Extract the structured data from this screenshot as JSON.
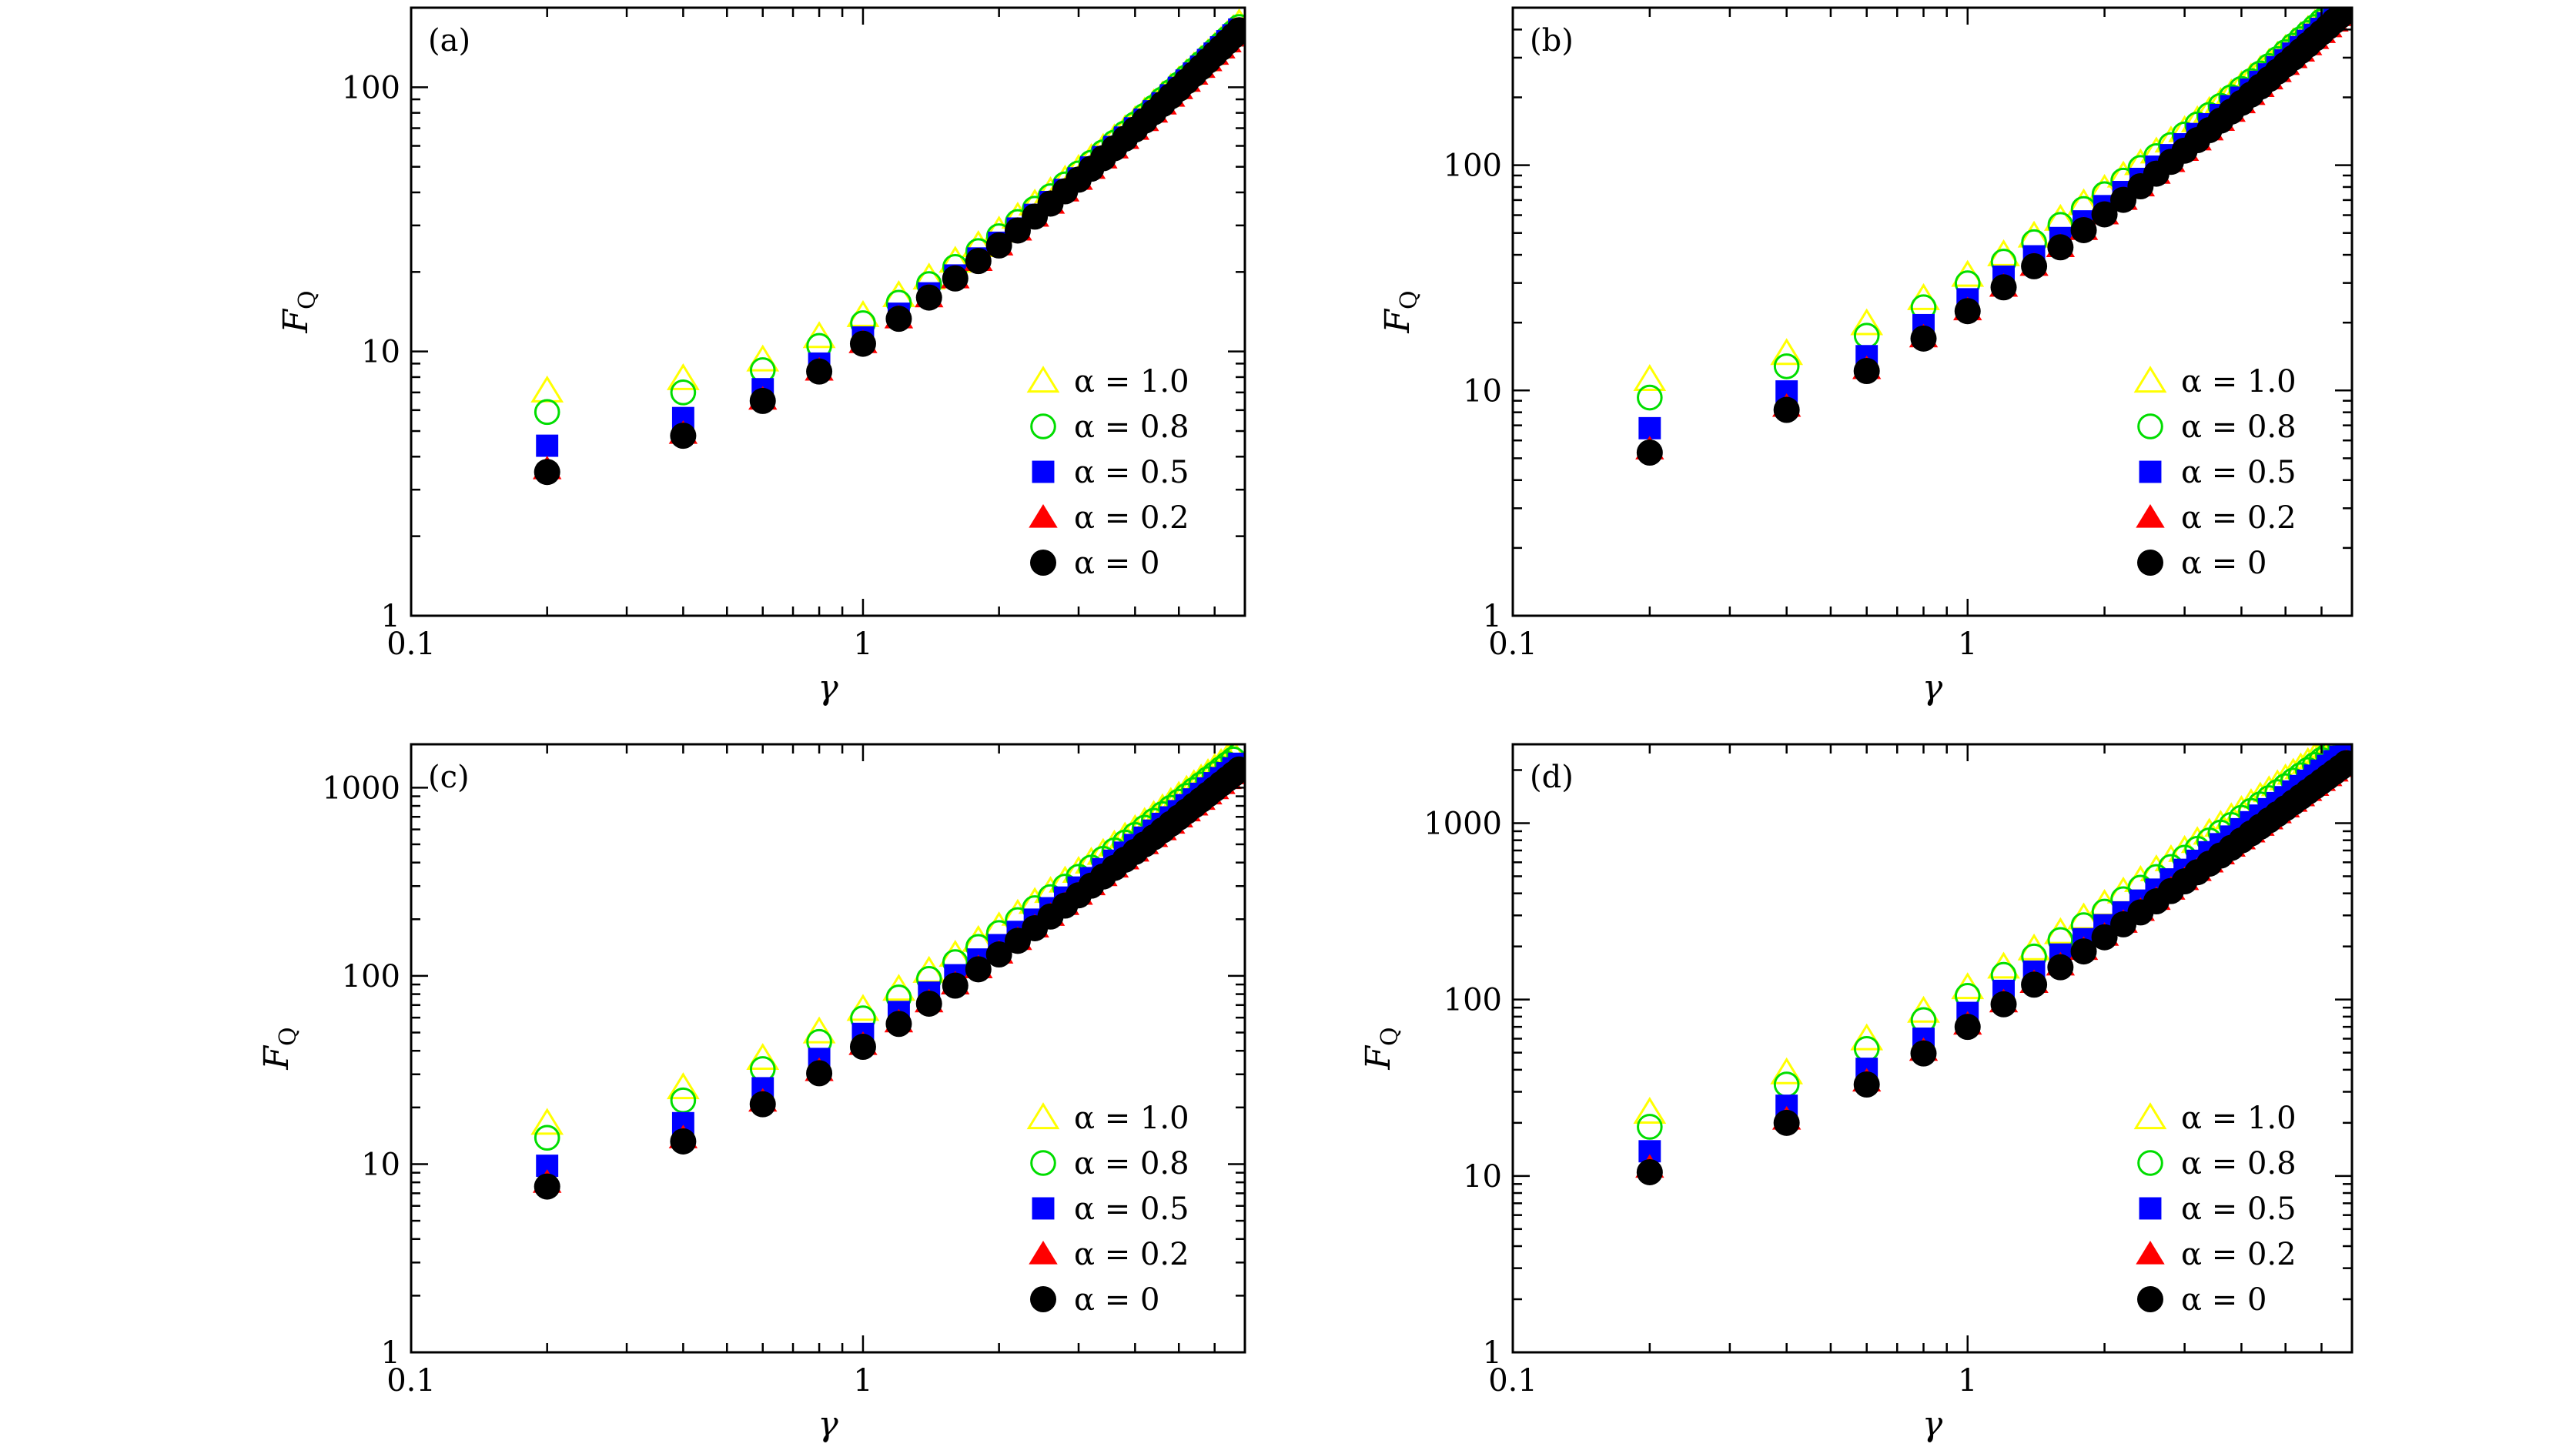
{
  "series_style": {
    "1.0": {
      "marker": "triangle-open",
      "color": "#ffff00"
    },
    "0.8": {
      "marker": "circle-open",
      "color": "#00dd00"
    },
    "0.5": {
      "marker": "square-filled",
      "color": "#0000ff"
    },
    "0.2": {
      "marker": "triangle-filled",
      "color": "#ff0000"
    },
    "0": {
      "marker": "circle-filled",
      "color": "#000000"
    }
  },
  "chart_data": [
    {
      "panel": "(a)",
      "type": "scatter",
      "xscale": "log",
      "yscale": "log",
      "xlabel": "γ",
      "ylabel": "F",
      "ylabel_sub": "Q",
      "xlim": [
        0.1,
        7
      ],
      "ylim": [
        1,
        200
      ],
      "xticks": [
        0.1,
        1
      ],
      "xtick_labels": [
        "0.1",
        "1"
      ],
      "yticks": [
        1,
        10,
        100
      ],
      "ytick_labels": [
        "1",
        "10",
        "100"
      ],
      "legend_position": "lower-right",
      "x": [
        0.2,
        0.4,
        0.6,
        0.8,
        1.0,
        1.2,
        1.4,
        1.6,
        1.8,
        2.0,
        2.2,
        2.4,
        2.6,
        2.8,
        3.0,
        3.2,
        3.4,
        3.6,
        3.8,
        4.0,
        4.2,
        4.4,
        4.6,
        4.8,
        5.0,
        5.2,
        5.4,
        5.6,
        5.8,
        6.0,
        6.2,
        6.4,
        6.6,
        6.8
      ],
      "series": [
        {
          "name": "α = 1.0",
          "key": "1.0",
          "values": [
            7.1,
            7.9,
            9.3,
            11.4,
            13.7,
            16.3,
            19.0,
            22.0,
            25.2,
            28.6,
            32.3,
            36.2,
            40.3,
            44.6,
            49.0,
            53.8,
            58.8,
            63.9,
            69.2,
            74.9,
            80.7,
            86.7,
            92.9,
            99.3,
            105.9,
            112.7,
            119.7,
            126.9,
            134.3,
            141.9,
            149.7,
            157.6,
            165.8,
            174.2
          ]
        },
        {
          "name": "α = 0.8",
          "key": "0.8",
          "values": [
            5.9,
            7.0,
            8.5,
            10.5,
            12.8,
            15.3,
            18.0,
            20.9,
            24.0,
            27.3,
            30.9,
            34.7,
            38.7,
            42.9,
            47.2,
            51.8,
            56.7,
            61.7,
            66.9,
            72.4,
            78.0,
            83.8,
            89.9,
            96.1,
            102.5,
            109.1,
            115.9,
            122.9,
            130.1,
            137.5,
            145.1,
            152.9,
            160.9,
            169.1
          ]
        },
        {
          "name": "α = 0.5",
          "key": "0.5",
          "values": [
            4.4,
            5.6,
            7.2,
            9.0,
            11.3,
            13.9,
            16.6,
            19.4,
            22.5,
            25.8,
            29.2,
            32.9,
            36.8,
            40.9,
            45.2,
            49.7,
            54.4,
            59.4,
            64.5,
            69.9,
            75.4,
            81.1,
            87.0,
            93.2,
            99.5,
            106.0,
            112.7,
            119.6,
            126.8,
            134.1,
            141.6,
            149.3,
            157.2,
            165.3
          ]
        },
        {
          "name": "α = 0.2",
          "key": "0.2",
          "values": [
            3.6,
            4.9,
            6.6,
            8.5,
            10.8,
            13.4,
            16.1,
            19.0,
            22.1,
            25.3,
            28.8,
            32.5,
            36.4,
            40.5,
            44.8,
            49.3,
            54.0,
            58.9,
            64.0,
            69.3,
            74.8,
            80.5,
            86.4,
            92.5,
            98.8,
            105.3,
            112.0,
            118.9,
            126.0,
            133.3,
            140.8,
            148.5,
            156.4,
            164.5
          ]
        },
        {
          "name": "α = 0",
          "key": "0",
          "values": [
            3.5,
            4.8,
            6.5,
            8.4,
            10.7,
            13.3,
            16.0,
            18.9,
            22.0,
            25.2,
            28.7,
            32.4,
            36.3,
            40.4,
            44.7,
            49.2,
            53.9,
            58.8,
            63.9,
            69.2,
            74.7,
            80.4,
            86.3,
            92.4,
            98.7,
            105.2,
            111.9,
            118.8,
            125.9,
            133.2,
            140.7,
            148.4,
            156.3,
            164.4
          ]
        }
      ]
    },
    {
      "panel": "(b)",
      "type": "scatter",
      "xscale": "log",
      "yscale": "log",
      "xlabel": "γ",
      "ylabel": "F",
      "ylabel_sub": "Q",
      "xlim": [
        0.1,
        7
      ],
      "ylim": [
        1,
        500
      ],
      "xticks": [
        0.1,
        1
      ],
      "xtick_labels": [
        "0.1",
        "1"
      ],
      "yticks": [
        1,
        10,
        100
      ],
      "ytick_labels": [
        "1",
        "10",
        "100"
      ],
      "legend_position": "lower-right",
      "x": [
        0.2,
        0.4,
        0.6,
        0.8,
        1.0,
        1.2,
        1.4,
        1.6,
        1.8,
        2.0,
        2.2,
        2.4,
        2.6,
        2.8,
        3.0,
        3.2,
        3.4,
        3.6,
        3.8,
        4.0,
        4.2,
        4.4,
        4.6,
        4.8,
        5.0,
        5.2,
        5.4,
        5.6,
        5.8,
        6.0,
        6.2,
        6.4,
        6.6,
        6.8
      ],
      "series": [
        {
          "name": "α = 1.0",
          "key": "1.0",
          "values": [
            11.2,
            14.6,
            19.8,
            25.6,
            32.5,
            40.1,
            48.5,
            57.6,
            67.5,
            78.2,
            89.6,
            101.7,
            114.6,
            128.2,
            142.6,
            157.7,
            173.6,
            190.2,
            207.5,
            225.6,
            244.5,
            264.1,
            284.4,
            305.5,
            327.4,
            350.0,
            373.4,
            397.5,
            422.4,
            448.0,
            474.4,
            501.5,
            529.4,
            558.0
          ]
        },
        {
          "name": "α = 0.8",
          "key": "0.8",
          "values": [
            9.3,
            12.8,
            17.5,
            23.4,
            29.9,
            37.3,
            45.5,
            54.3,
            63.9,
            74.3,
            85.4,
            97.2,
            109.7,
            122.9,
            136.9,
            151.6,
            167.1,
            183.3,
            200.2,
            217.9,
            236.3,
            255.4,
            275.3,
            295.9,
            317.3,
            339.4,
            362.2,
            385.8,
            410.1,
            435.2,
            461.0,
            487.5,
            514.8,
            542.8
          ]
        },
        {
          "name": "α = 0.5",
          "key": "0.5",
          "values": [
            6.8,
            9.9,
            14.2,
            19.5,
            25.4,
            32.0,
            39.4,
            47.5,
            56.3,
            65.8,
            76.0,
            86.9,
            98.5,
            110.8,
            123.8,
            137.5,
            151.9,
            167.0,
            182.8,
            199.3,
            216.5,
            234.4,
            253.0,
            272.3,
            292.3,
            313.0,
            334.4,
            356.5,
            379.3,
            402.8,
            427.0,
            451.9,
            477.5,
            503.8
          ]
        },
        {
          "name": "α = 0.2",
          "key": "0.2",
          "values": [
            5.5,
            8.5,
            12.5,
            17.3,
            22.8,
            29.0,
            35.9,
            43.5,
            51.8,
            60.8,
            70.5,
            80.9,
            92.0,
            103.8,
            116.3,
            129.5,
            143.4,
            158.0,
            173.3,
            189.3,
            206.0,
            223.4,
            241.5,
            260.3,
            279.8,
            300.0,
            320.9,
            342.5,
            364.8,
            387.8,
            411.5,
            435.9,
            461.0,
            486.8
          ]
        },
        {
          "name": "α = 0",
          "key": "0",
          "values": [
            5.3,
            8.2,
            12.2,
            17.0,
            22.5,
            28.7,
            35.6,
            43.2,
            51.5,
            60.5,
            70.2,
            80.6,
            91.7,
            103.5,
            116.0,
            129.2,
            143.1,
            157.7,
            173.0,
            189.0,
            205.7,
            223.1,
            241.2,
            260.0,
            279.5,
            299.7,
            320.6,
            342.2,
            364.5,
            387.5,
            411.2,
            435.6,
            460.7,
            486.5
          ]
        }
      ]
    },
    {
      "panel": "(c)",
      "type": "scatter",
      "xscale": "log",
      "yscale": "log",
      "xlabel": "γ",
      "ylabel": "F",
      "ylabel_sub": "Q",
      "xlim": [
        0.1,
        7
      ],
      "ylim": [
        1,
        1700
      ],
      "xticks": [
        0.1,
        1
      ],
      "xtick_labels": [
        "0.1",
        "1"
      ],
      "yticks": [
        1,
        10,
        100,
        1000
      ],
      "ytick_labels": [
        "1",
        "10",
        "100",
        "1000"
      ],
      "legend_position": "lower-right",
      "x": [
        0.2,
        0.4,
        0.6,
        0.8,
        1.0,
        1.2,
        1.4,
        1.6,
        1.8,
        2.0,
        2.2,
        2.4,
        2.6,
        2.8,
        3.0,
        3.2,
        3.4,
        3.6,
        3.8,
        4.0,
        4.2,
        4.4,
        4.6,
        4.8,
        5.0,
        5.2,
        5.4,
        5.6,
        5.8,
        6.0,
        6.2,
        6.4,
        6.6,
        6.8
      ],
      "series": [
        {
          "name": "α = 1.0",
          "key": "1.0",
          "values": [
            16.5,
            25.5,
            36.5,
            50.5,
            66.5,
            85.0,
            106.0,
            129.0,
            154.5,
            182.5,
            213.0,
            246.0,
            281.5,
            319.5,
            360.0,
            403.0,
            448.5,
            496.5,
            547.0,
            600.0,
            655.5,
            713.5,
            774.0,
            837.0,
            902.5,
            970.5,
            1041.0,
            1114.0,
            1189.5,
            1267.5,
            1348.0,
            1431.0,
            1516.5,
            1604.5
          ]
        },
        {
          "name": "α = 0.8",
          "key": "0.8",
          "values": [
            13.8,
            21.8,
            32.0,
            44.6,
            59.5,
            76.8,
            96.4,
            118.3,
            142.5,
            169.0,
            197.8,
            228.9,
            262.3,
            298.0,
            336.0,
            376.3,
            418.9,
            463.8,
            511.0,
            560.5,
            612.3,
            666.4,
            722.8,
            781.5,
            842.5,
            905.8,
            971.4,
            1039.3,
            1109.5,
            1182.0,
            1256.8,
            1333.9,
            1413.3,
            1495.0
          ]
        },
        {
          "name": "α = 0.5",
          "key": "0.5",
          "values": [
            9.8,
            16.5,
            25.3,
            36.2,
            49.2,
            64.3,
            81.5,
            100.8,
            122.2,
            145.7,
            171.3,
            199.0,
            228.8,
            260.7,
            294.7,
            330.8,
            369.0,
            409.3,
            451.7,
            496.2,
            542.8,
            591.5,
            642.3,
            695.2,
            750.2,
            807.3,
            866.5,
            927.8,
            991.2,
            1056.7,
            1124.3,
            1194.0,
            1265.8,
            1339.7
          ]
        },
        {
          "name": "α = 0.2",
          "key": "0.2",
          "values": [
            8.0,
            13.8,
            21.6,
            31.4,
            43.2,
            57.0,
            72.8,
            90.6,
            110.4,
            132.2,
            156.0,
            181.8,
            209.6,
            239.4,
            271.2,
            305.0,
            340.8,
            378.6,
            418.4,
            460.2,
            504.0,
            549.8,
            597.6,
            647.4,
            699.2,
            753.0,
            808.8,
            866.6,
            926.4,
            988.2,
            1052.0,
            1117.8,
            1185.6,
            1255.4
          ]
        },
        {
          "name": "α = 0",
          "key": "0",
          "values": [
            7.6,
            13.2,
            20.8,
            30.4,
            42.0,
            55.6,
            71.2,
            88.8,
            108.4,
            130.0,
            153.6,
            179.2,
            206.8,
            236.4,
            268.0,
            301.6,
            337.2,
            374.8,
            414.4,
            456.0,
            499.6,
            545.2,
            592.8,
            642.4,
            694.0,
            747.6,
            803.2,
            860.8,
            920.4,
            982.0,
            1045.6,
            1111.2,
            1178.8,
            1248.4
          ]
        }
      ]
    },
    {
      "panel": "(d)",
      "type": "scatter",
      "xscale": "log",
      "yscale": "log",
      "xlabel": "γ",
      "ylabel": "F",
      "ylabel_sub": "Q",
      "xlim": [
        0.1,
        7
      ],
      "ylim": [
        1,
        2800
      ],
      "xticks": [
        0.1,
        1
      ],
      "xtick_labels": [
        "0.1",
        "1"
      ],
      "yticks": [
        1,
        10,
        100,
        1000
      ],
      "ytick_labels": [
        "1",
        "10",
        "100",
        "1000"
      ],
      "legend_position": "lower-right",
      "x": [
        0.2,
        0.4,
        0.6,
        0.8,
        1.0,
        1.2,
        1.4,
        1.6,
        1.8,
        2.0,
        2.2,
        2.4,
        2.6,
        2.8,
        3.0,
        3.2,
        3.4,
        3.6,
        3.8,
        4.0,
        4.2,
        4.4,
        4.6,
        4.8,
        5.0,
        5.2,
        5.4,
        5.6,
        5.8,
        6.0,
        6.2,
        6.4,
        6.6,
        6.8
      ],
      "series": [
        {
          "name": "α = 1.0",
          "key": "1.0",
          "values": [
            23.0,
            38.5,
            60.0,
            86.0,
            117.0,
            153.0,
            194.0,
            240.0,
            291.0,
            347.0,
            408.0,
            474.0,
            545.0,
            621.0,
            702.0,
            788.0,
            879.0,
            975.0,
            1076.0,
            1182.0,
            1293.0,
            1409.0,
            1530.0,
            1656.0,
            1787.0,
            1923.0,
            2064.0,
            2210.0,
            2361.0,
            2517.0,
            2678.0,
            2844.0,
            3015.0,
            3191.0
          ]
        },
        {
          "name": "α = 0.8",
          "key": "0.8",
          "values": [
            19.0,
            33.0,
            52.5,
            76.5,
            105.0,
            138.0,
            175.5,
            217.5,
            264.0,
            315.0,
            370.5,
            430.5,
            495.0,
            564.0,
            637.5,
            715.5,
            798.0,
            885.0,
            976.5,
            1072.5,
            1173.0,
            1278.0,
            1387.5,
            1501.5,
            1620.0,
            1743.0,
            1870.5,
            2002.5,
            2139.0,
            2280.0,
            2425.5,
            2575.5,
            2730.0,
            2889.0
          ]
        },
        {
          "name": "α = 0.5",
          "key": "0.5",
          "values": [
            13.8,
            25.0,
            40.5,
            60.0,
            84.0,
            112.0,
            144.0,
            180.0,
            220.0,
            264.0,
            312.0,
            364.0,
            420.0,
            480.0,
            544.0,
            612.0,
            684.0,
            760.0,
            840.0,
            924.0,
            1012.0,
            1104.0,
            1200.0,
            1300.0,
            1404.0,
            1512.0,
            1624.0,
            1740.0,
            1860.0,
            1984.0,
            2112.0,
            2244.0,
            2380.0,
            2520.0
          ]
        },
        {
          "name": "α = 0.2",
          "key": "0.2",
          "values": [
            11.2,
            21.0,
            34.5,
            51.5,
            72.5,
            97.0,
            125.0,
            157.0,
            192.5,
            231.5,
            274.0,
            320.0,
            369.5,
            422.5,
            479.0,
            539.0,
            602.5,
            669.5,
            740.0,
            814.0,
            891.5,
            972.5,
            1057.0,
            1145.0,
            1236.5,
            1331.5,
            1430.0,
            1532.0,
            1637.5,
            1746.5,
            1859.0,
            1975.0,
            2094.5,
            2217.5
          ]
        },
        {
          "name": "α = 0",
          "key": "0",
          "values": [
            10.5,
            20.0,
            33.0,
            49.5,
            70.0,
            94.0,
            121.5,
            152.5,
            187.5,
            225.5,
            267.0,
            312.0,
            360.5,
            412.5,
            468.0,
            527.0,
            589.5,
            655.5,
            725.0,
            798.0,
            874.5,
            954.5,
            1038.0,
            1125.0,
            1215.5,
            1309.5,
            1407.0,
            1508.0,
            1612.5,
            1720.5,
            1832.0,
            1947.0,
            2065.5,
            2187.5
          ]
        }
      ]
    }
  ]
}
